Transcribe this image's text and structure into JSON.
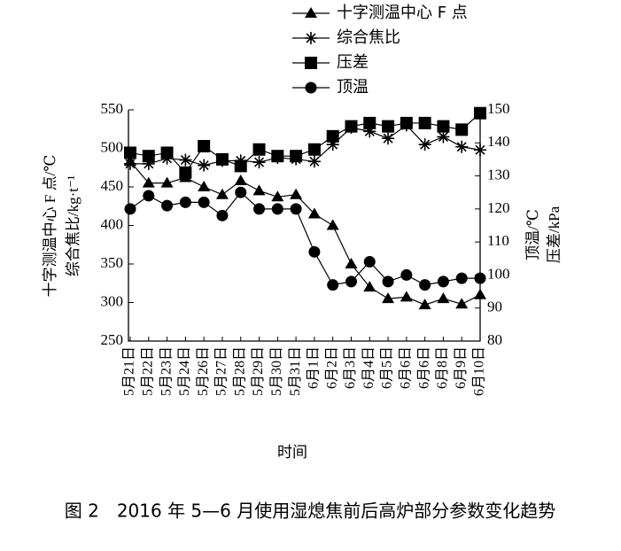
{
  "chart_data": {
    "type": "line",
    "caption": "图 2　2016 年 5—6 月使用湿熄焦前后高炉部分参数变化趋势",
    "x_label": "时间",
    "y_labels": [
      "十字测温中心 F 点/℃",
      "综合焦比/kg·t⁻¹"
    ],
    "y2_labels": [
      "顶温/℃",
      "压差/kPa"
    ],
    "categories": [
      "5月21日",
      "5月22日",
      "5月23日",
      "5月24日",
      "5月26日",
      "5月27日",
      "5月28日",
      "5月29日",
      "5月30日",
      "5月31日",
      "6月1日",
      "6月2日",
      "6月3日",
      "6月4日",
      "6月5日",
      "6月6日",
      "6月6日",
      "6月8日",
      "6月9日",
      "6月10日"
    ],
    "ylim": [
      250,
      550
    ],
    "yticks": [
      250,
      300,
      350,
      400,
      450,
      500,
      550
    ],
    "y2lim": [
      80,
      150
    ],
    "y2ticks": [
      80,
      90,
      100,
      110,
      120,
      130,
      140,
      150
    ],
    "series": [
      {
        "name": "十字测温中心 F 点",
        "color": "#000000",
        "marker": "triangle",
        "values": [
          483,
          455,
          455,
          462,
          450,
          440,
          458,
          445,
          437,
          440,
          415,
          400,
          350,
          320,
          305,
          307,
          297,
          305,
          298,
          310
        ]
      },
      {
        "name": "综合焦比",
        "color": "#000000",
        "marker": "asterisk",
        "values": [
          480,
          480,
          487,
          485,
          478,
          484,
          484,
          482,
          488,
          486,
          483,
          505,
          527,
          522,
          513,
          530,
          505,
          515,
          502,
          498
        ]
      },
      {
        "name": "压差",
        "color": "#000000",
        "marker": "square",
        "axis": "y2",
        "values": [
          137,
          136,
          137,
          131,
          139,
          135,
          133,
          138,
          136,
          136,
          138,
          142,
          145,
          146,
          145,
          146,
          146,
          145,
          144,
          149
        ]
      },
      {
        "name": "顶温",
        "color": "#000000",
        "marker": "circle",
        "axis": "y2",
        "values": [
          120,
          124,
          121,
          122,
          122,
          118,
          125,
          120,
          120,
          120,
          107,
          97,
          98,
          104,
          98,
          100,
          97,
          98,
          99,
          99
        ]
      }
    ]
  }
}
